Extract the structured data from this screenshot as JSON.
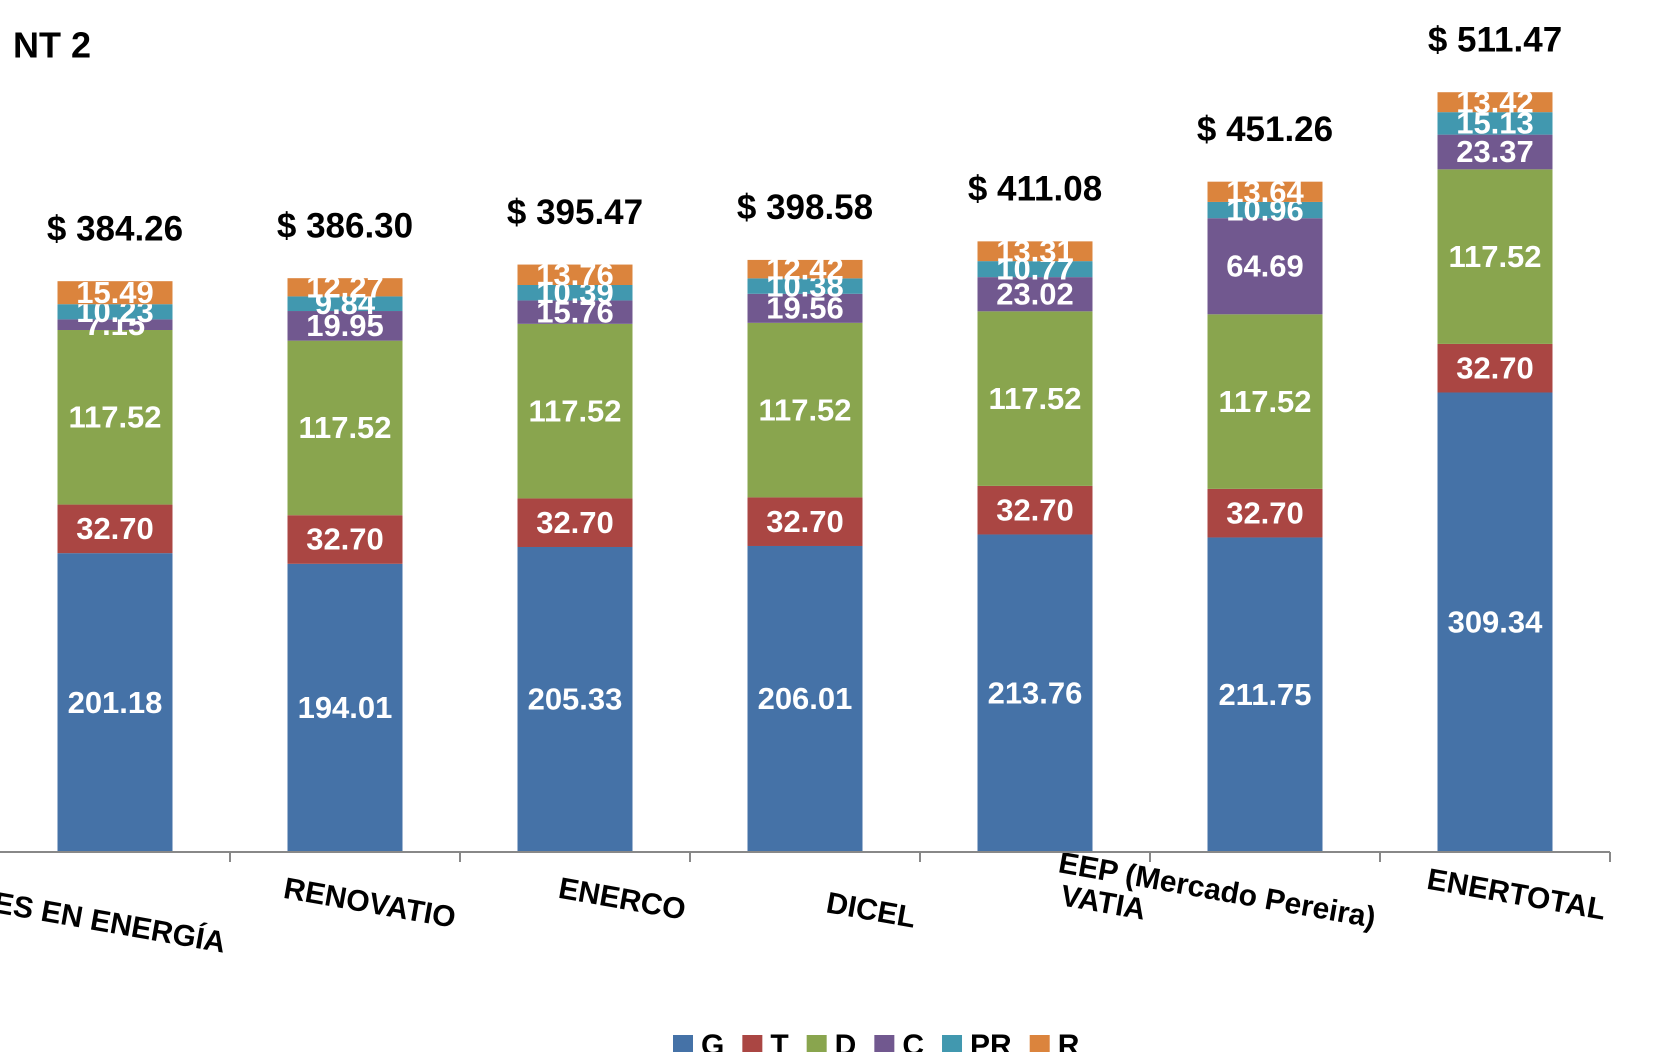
{
  "chart_data": {
    "type": "stacked_bar",
    "title": "NT 2",
    "categories": [
      "PROFESIONALES EN ENERGÍA",
      "RENOVATIO",
      "ENERCO",
      "DICEL",
      "VATIA",
      "EEP (Mercado Pereira)",
      "ENERTOTAL"
    ],
    "ylim": [
      0,
      550
    ],
    "series": [
      {
        "name": "G",
        "color": "#4572a7",
        "values": [
          201.18,
          194.01,
          205.33,
          206.01,
          213.76,
          211.75,
          309.34
        ],
        "value_labels": [
          "201.18",
          "194.01",
          "205.33",
          "206.01",
          "213.76",
          "211.75",
          "309.34"
        ]
      },
      {
        "name": "T",
        "color": "#aa4643",
        "values": [
          32.7,
          32.7,
          32.7,
          32.7,
          32.7,
          32.7,
          32.7
        ],
        "value_labels": [
          "32.70",
          "32.70",
          "32.70",
          "32.70",
          "32.70",
          "32.70",
          "32.70"
        ]
      },
      {
        "name": "D",
        "color": "#89a54e",
        "values": [
          117.52,
          117.52,
          117.52,
          117.52,
          117.52,
          117.52,
          117.52
        ],
        "value_labels": [
          "117.52",
          "117.52",
          "117.52",
          "117.52",
          "117.52",
          "117.52",
          "117.52"
        ]
      },
      {
        "name": "C",
        "color": "#71588f",
        "values": [
          7.15,
          19.95,
          15.76,
          19.56,
          23.02,
          64.69,
          23.37
        ],
        "value_labels": [
          "7.15",
          "19.95",
          "15.76",
          "19.56",
          "23.02",
          "64.69",
          "23.37"
        ]
      },
      {
        "name": "PR",
        "color": "#4198af",
        "values": [
          10.23,
          9.84,
          10.39,
          10.38,
          10.77,
          10.96,
          15.13
        ],
        "value_labels": [
          "10.23",
          "9.84",
          "10.39",
          "10.38",
          "10.77",
          "10.96",
          "15.13"
        ]
      },
      {
        "name": "R",
        "color": "#db843d",
        "values": [
          15.49,
          12.27,
          13.76,
          12.42,
          13.31,
          13.64,
          13.42
        ],
        "value_labels": [
          "15.49",
          "12.27",
          "13.76",
          "12.42",
          "13.31",
          "13.64",
          "13.42"
        ]
      }
    ],
    "totals": [
      384.26,
      386.3,
      395.47,
      398.58,
      411.08,
      451.26,
      511.47
    ],
    "total_labels": [
      "$ 384.26",
      "$ 386.30",
      "$ 395.47",
      "$ 398.58",
      "$ 411.08",
      "$ 451.26",
      "$ 511.47"
    ],
    "legend": "bottom"
  }
}
